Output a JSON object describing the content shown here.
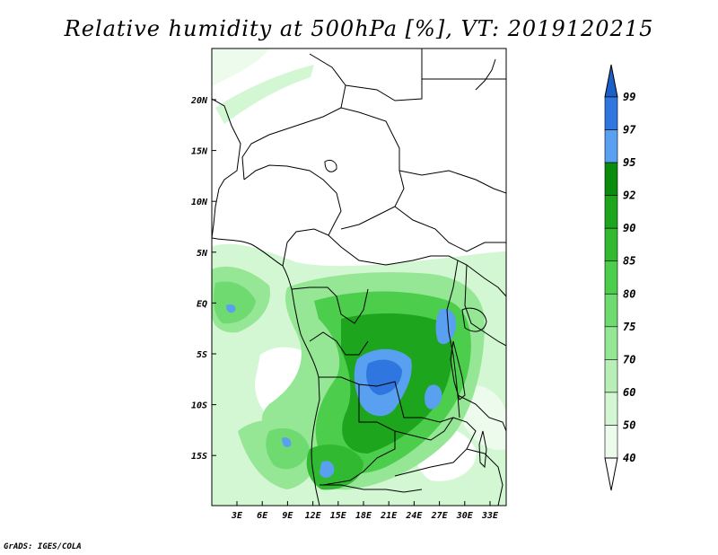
{
  "title": "Relative humidity at 500hPa [%], VT: 2019120215",
  "credit": "GrADS: IGES/COLA",
  "map": {
    "lon_ticks": [
      "3E",
      "6E",
      "9E",
      "12E",
      "15E",
      "18E",
      "21E",
      "24E",
      "27E",
      "30E",
      "33E"
    ],
    "lat_ticks": [
      "20N",
      "15N",
      "10N",
      "5N",
      "EQ",
      "5S",
      "10S",
      "15S"
    ]
  },
  "colorbar": {
    "labels": [
      "99",
      "97",
      "95",
      "92",
      "90",
      "85",
      "80",
      "75",
      "70",
      "60",
      "50",
      "40"
    ],
    "colors": [
      "#1c5fc9",
      "#2f76e0",
      "#5aa0f0",
      "#0c8c0c",
      "#1ea51e",
      "#32b932",
      "#4ccd4c",
      "#6fda6f",
      "#95e695",
      "#b7efb7",
      "#d3f6d3",
      "#ecfbec",
      "#ffffff"
    ]
  }
}
